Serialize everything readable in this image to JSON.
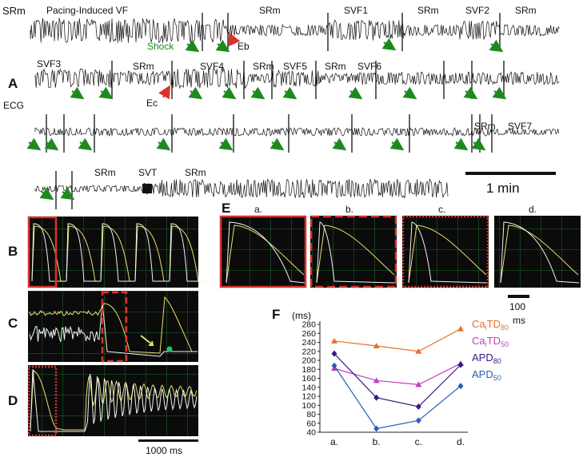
{
  "ecg": {
    "side_label": "SRm",
    "panel_letter": "A",
    "ecg_label": "ECG",
    "row1": [
      "Pacing-Induced VF",
      "SRm",
      "SVF1",
      "SRm",
      "SVF2",
      "SRm"
    ],
    "row1_shock": "Shock",
    "row1_eb": "Eb",
    "row2": [
      "SVF3",
      "SRm",
      "SVF4",
      "SRm",
      "SVF5",
      "SRm",
      "SVF6"
    ],
    "row2_ec": "Ec",
    "row3": [
      "SRm",
      "SVF7"
    ],
    "row4": [
      "SRm",
      "SVT",
      "SRm"
    ],
    "scale": "1 min"
  },
  "optical": {
    "panel_b": "B",
    "panel_c": "C",
    "panel_d": "D",
    "scale": "1000 ms"
  },
  "panel_e": {
    "letter": "E",
    "columns": [
      "a.",
      "b.",
      "c.",
      "d."
    ],
    "scale_value": "100",
    "scale_unit": "ms"
  },
  "colors": {
    "trace_yellow": "#e8e070",
    "trace_white": "#f2f2f2",
    "grid_green": "#1f6b2a",
    "panel_bg": "#0b0b0b",
    "box_red": "#d9322a",
    "arrow_green": "#1e8a1e"
  },
  "chart_data": {
    "type": "line",
    "panel_letter": "F",
    "ylabel": "(ms)",
    "categories": [
      "a.",
      "b.",
      "c.",
      "d."
    ],
    "ylim": [
      40,
      280
    ],
    "yticks": [
      40,
      60,
      80,
      100,
      120,
      140,
      160,
      180,
      200,
      220,
      240,
      260,
      280
    ],
    "series": [
      {
        "name": "CaiTD80",
        "base": "Ca",
        "sub": "i",
        "rest": "TD",
        "rsub": "80",
        "color": "#e8702a",
        "marker": "triangle",
        "values": [
          243,
          232,
          220,
          270
        ]
      },
      {
        "name": "CaiTD50",
        "base": "Ca",
        "sub": "i",
        "rest": "TD",
        "rsub": "50",
        "color": "#c040c0",
        "marker": "triangle",
        "values": [
          182,
          155,
          146,
          193
        ]
      },
      {
        "name": "APD80",
        "base": "APD",
        "sub": "",
        "rest": "",
        "rsub": "80",
        "color": "#3a1a80",
        "marker": "diamond",
        "values": [
          215,
          117,
          97,
          190
        ]
      },
      {
        "name": "APD50",
        "base": "APD",
        "sub": "",
        "rest": "",
        "rsub": "50",
        "color": "#2a5cb8",
        "marker": "diamond",
        "values": [
          188,
          48,
          66,
          143
        ]
      }
    ]
  }
}
